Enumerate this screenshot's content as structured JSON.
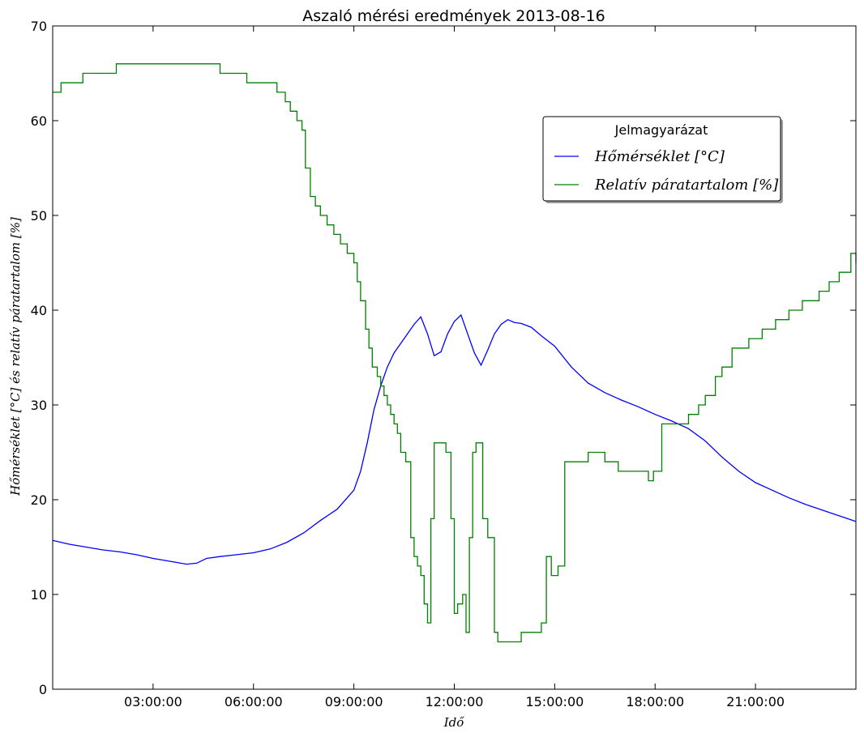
{
  "chart_data": {
    "type": "line",
    "title": "Aszaló mérési eredmények 2013-08-16",
    "xlabel": "Idő",
    "ylabel": "Hőmérséklet [°C] és relatív páratartalom [%]",
    "xlim": [
      0,
      24
    ],
    "ylim": [
      0,
      70
    ],
    "x_tick_values": [
      3,
      6,
      9,
      12,
      15,
      18,
      21
    ],
    "x_tick_labels": [
      "03:00:00",
      "06:00:00",
      "09:00:00",
      "12:00:00",
      "15:00:00",
      "18:00:00",
      "21:00:00"
    ],
    "y_ticks": [
      0,
      10,
      20,
      30,
      40,
      50,
      60,
      70
    ],
    "legend": {
      "title": "Jelmagyarázat",
      "position": "upper-right",
      "entries": [
        "Hőmérséklet [°C]",
        "Relatív páratartalom [%]"
      ]
    },
    "grid": false,
    "series": [
      {
        "name": "Hőmérséklet [°C]",
        "color": "#0000ff",
        "step": false,
        "x": [
          0,
          0.5,
          1,
          1.5,
          2,
          2.5,
          3,
          3.5,
          4,
          4.3,
          4.6,
          5,
          5.5,
          6,
          6.5,
          7,
          7.5,
          8,
          8.5,
          9,
          9.2,
          9.4,
          9.6,
          9.8,
          10,
          10.2,
          10.5,
          10.8,
          11,
          11.2,
          11.4,
          11.6,
          11.8,
          12,
          12.2,
          12.4,
          12.6,
          12.8,
          13,
          13.2,
          13.4,
          13.6,
          13.8,
          14,
          14.3,
          14.6,
          15,
          15.5,
          16,
          16.5,
          17,
          17.5,
          18,
          18.5,
          19,
          19.5,
          20,
          20.5,
          21,
          21.5,
          22,
          22.5,
          23,
          23.5,
          24
        ],
        "y": [
          15.7,
          15.3,
          15.0,
          14.7,
          14.5,
          14.2,
          13.8,
          13.5,
          13.2,
          13.3,
          13.8,
          14.0,
          14.2,
          14.4,
          14.8,
          15.5,
          16.5,
          17.8,
          19.0,
          21.0,
          23.0,
          26.0,
          29.5,
          32.0,
          34.0,
          35.5,
          37.0,
          38.5,
          39.3,
          37.5,
          35.2,
          35.6,
          37.5,
          38.8,
          39.5,
          37.5,
          35.5,
          34.2,
          35.8,
          37.5,
          38.5,
          39.0,
          38.7,
          38.6,
          38.2,
          37.3,
          36.2,
          34.0,
          32.3,
          31.3,
          30.5,
          29.8,
          29.0,
          28.3,
          27.5,
          26.2,
          24.5,
          23.0,
          21.8,
          21.0,
          20.2,
          19.5,
          18.9,
          18.3,
          17.7
        ]
      },
      {
        "name": "Relatív páratartalom [%]",
        "color": "#008000",
        "step": true,
        "x": [
          0,
          0.25,
          0.9,
          1.9,
          2.1,
          3.6,
          4.6,
          5.0,
          5.8,
          6.7,
          6.95,
          7.1,
          7.3,
          7.45,
          7.55,
          7.7,
          7.85,
          8.0,
          8.2,
          8.4,
          8.6,
          8.8,
          9.0,
          9.1,
          9.2,
          9.35,
          9.45,
          9.55,
          9.7,
          9.8,
          9.9,
          10.0,
          10.1,
          10.2,
          10.3,
          10.4,
          10.55,
          10.7,
          10.8,
          10.9,
          11.0,
          11.1,
          11.2,
          11.3,
          11.4,
          11.55,
          11.75,
          11.9,
          12.0,
          12.1,
          12.25,
          12.35,
          12.45,
          12.55,
          12.65,
          12.75,
          12.85,
          13.0,
          13.2,
          13.3,
          13.45,
          13.75,
          14.0,
          14.6,
          14.75,
          14.9,
          15.1,
          15.3,
          15.9,
          16.0,
          16.5,
          16.9,
          17.2,
          17.8,
          17.95,
          18.2,
          18.7,
          19.0,
          19.3,
          19.5,
          19.8,
          20.0,
          20.3,
          20.8,
          21.2,
          21.6,
          22.0,
          22.4,
          22.9,
          23.2,
          23.5,
          23.85,
          24.0
        ],
        "y": [
          63,
          64,
          65,
          66,
          66,
          66,
          66,
          65,
          64,
          63,
          62,
          61,
          60,
          59,
          55,
          52,
          51,
          50,
          49,
          48,
          47,
          46,
          45,
          43,
          41,
          38,
          36,
          34,
          33,
          32,
          31,
          30,
          29,
          28,
          27,
          25,
          24,
          16,
          14,
          13,
          12,
          9,
          7,
          18,
          26,
          26,
          25,
          18,
          8,
          9,
          10,
          6,
          16,
          25,
          26,
          26,
          18,
          16,
          6,
          5,
          5,
          5,
          6,
          7,
          14,
          12,
          13,
          24,
          24,
          25,
          24,
          23,
          23,
          22,
          23,
          28,
          28,
          29,
          30,
          31,
          33,
          34,
          36,
          37,
          38,
          39,
          40,
          41,
          42,
          43,
          44,
          46,
          45
        ]
      }
    ]
  }
}
